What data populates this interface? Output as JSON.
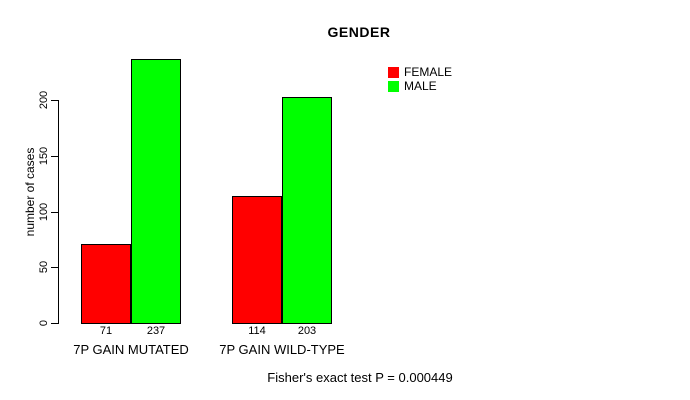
{
  "figure": {
    "title": "GENDER",
    "ylabel": "number of cases",
    "footnote": "Fisher's exact test P = 0.000449"
  },
  "chart_data": {
    "type": "bar",
    "title": "GENDER",
    "xlabel": "",
    "ylabel": "number of cases",
    "categories": [
      "7P GAIN MUTATED",
      "7P GAIN WILD-TYPE"
    ],
    "series": [
      {
        "name": "FEMALE",
        "color": "#ff0000",
        "values": [
          71,
          114
        ]
      },
      {
        "name": "MALE",
        "color": "#00ff00",
        "values": [
          237,
          203
        ]
      }
    ],
    "bar_value_labels": [
      [
        "71",
        "237"
      ],
      [
        "114",
        "203"
      ]
    ],
    "yticks": [
      0,
      50,
      100,
      150,
      200
    ],
    "ylim": [
      0,
      237
    ],
    "grid": false,
    "legend_position": "top-right",
    "annotation": "Fisher's exact test P = 0.000449"
  }
}
